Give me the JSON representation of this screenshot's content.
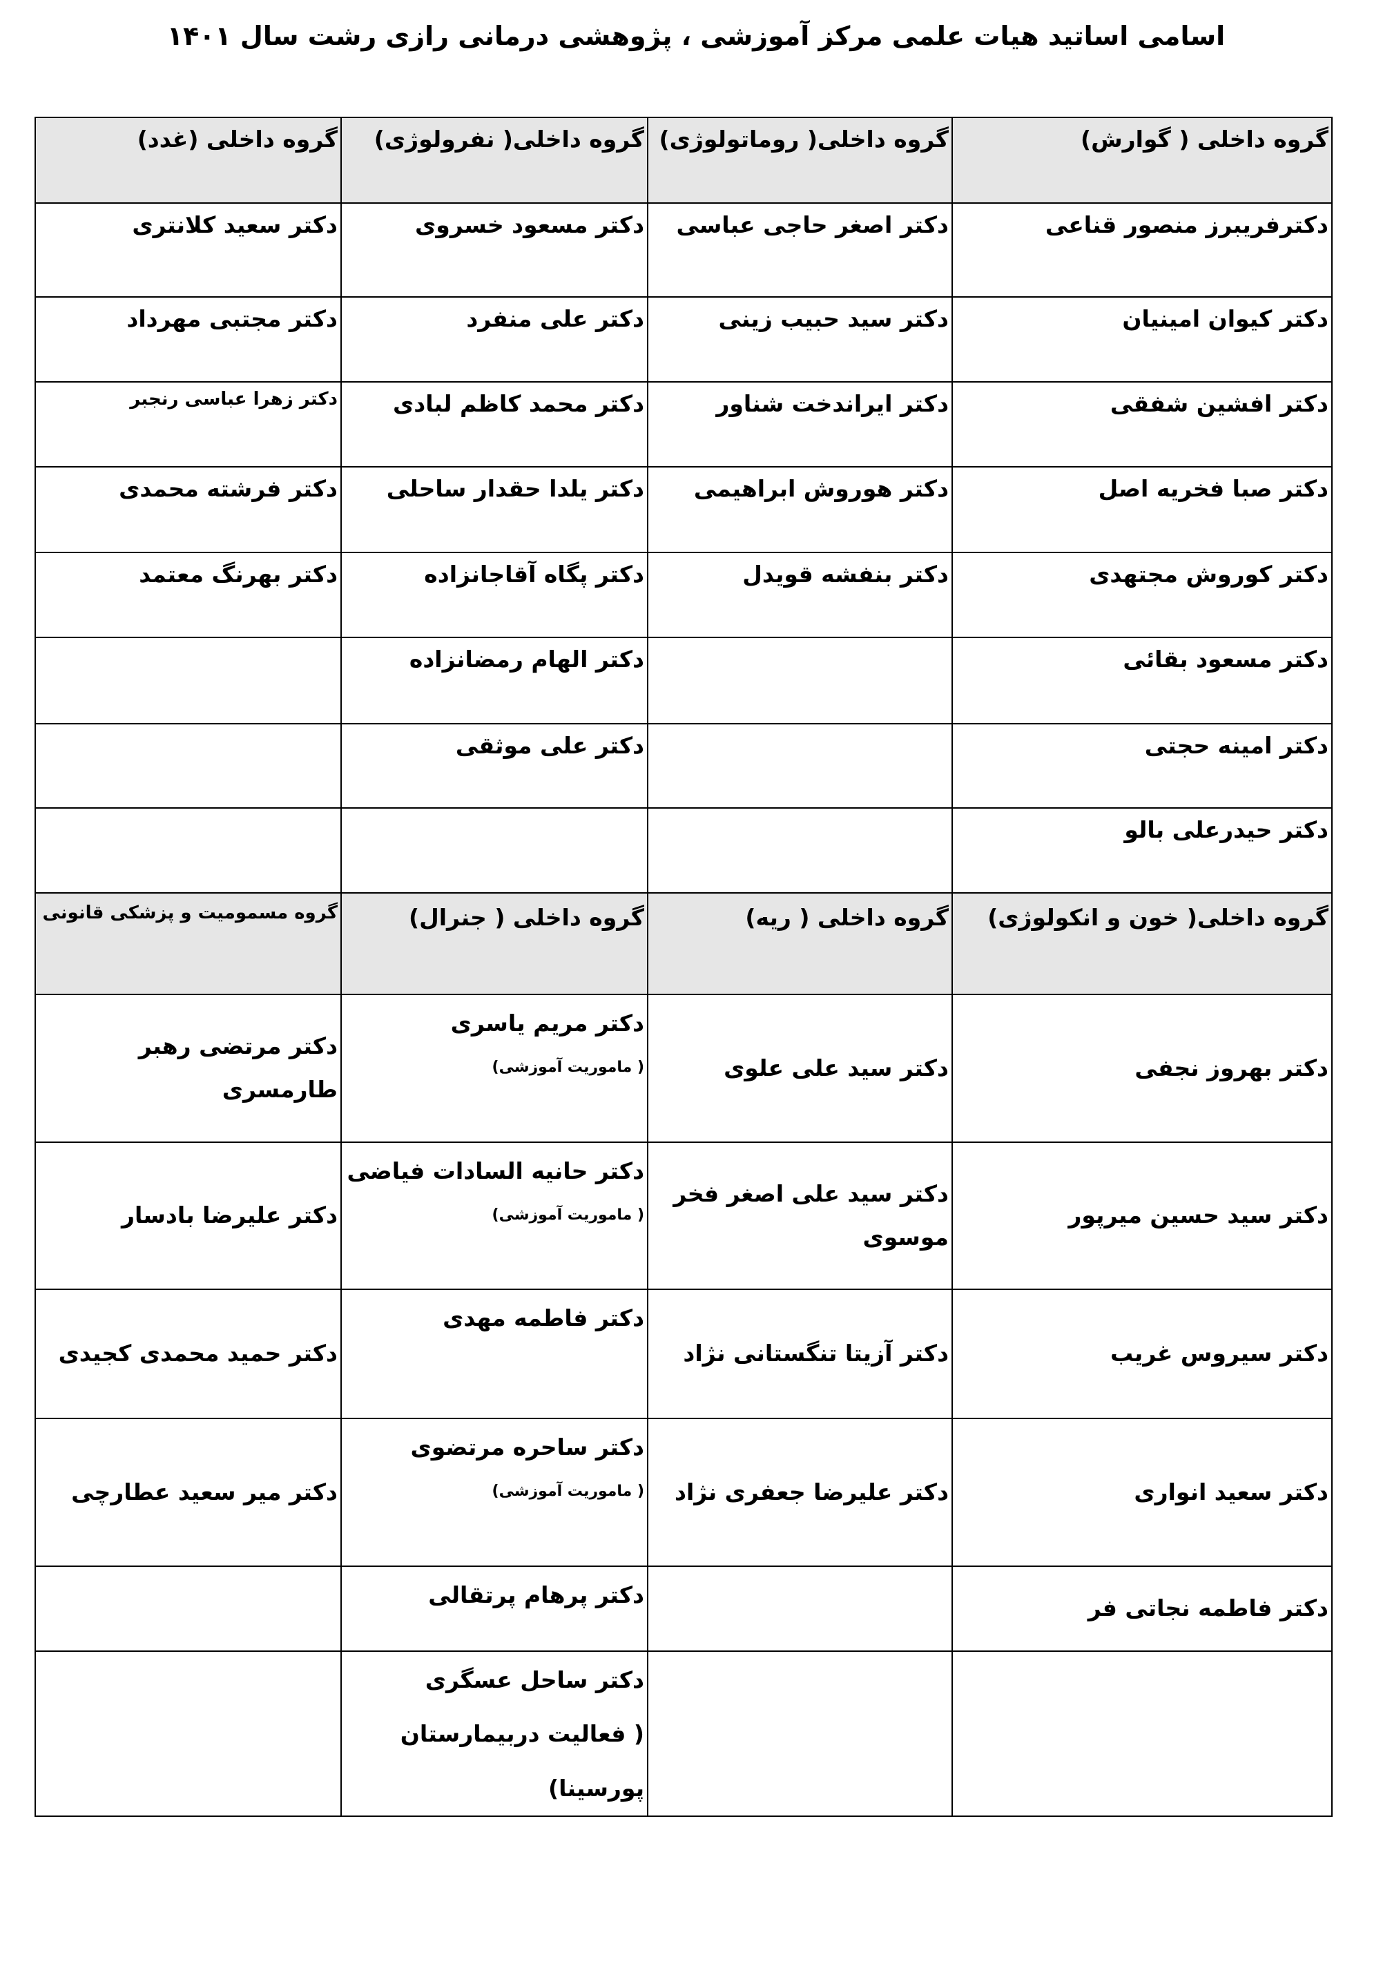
{
  "title": "اسامی اساتید هیات علمی مرکز آموزشی ، پژوهشی درمانی رازی رشت سال ۱۴۰۱",
  "sections": [
    {
      "headers": [
        "گروه داخلی ( گوارش)",
        "گروه داخلی( روماتولوژی)",
        "گروه داخلی( نفرولوژی)",
        "گروه داخلی (غدد)"
      ],
      "rows": [
        [
          {
            "name": "دکترفریبرز منصور قناعی"
          },
          {
            "name": "دکتر اصغر حاجی عباسی"
          },
          {
            "name": "دکتر مسعود خسروی"
          },
          {
            "name": "دکتر سعید کلانتری"
          }
        ],
        [
          {
            "name": "دکتر کیوان امینیان"
          },
          {
            "name": "دکتر سید حبیب زینی"
          },
          {
            "name": "دکتر علی منفرد"
          },
          {
            "name": "دکتر مجتبی مهرداد"
          }
        ],
        [
          {
            "name": "دکتر افشین شفقی"
          },
          {
            "name": "دکتر ایراندخت شناور"
          },
          {
            "name": "دکتر محمد کاظم لبادی"
          },
          {
            "name": "دکتر  زهرا عباسی رنجبر",
            "small": true
          }
        ],
        [
          {
            "name": "دکتر صبا فخریه اصل"
          },
          {
            "name": "دکتر هوروش ابراهیمی"
          },
          {
            "name": "دکتر یلدا حقدار ساحلی"
          },
          {
            "name": "دکتر فرشته محمدی"
          }
        ],
        [
          {
            "name": "دکتر کوروش مجتهدی"
          },
          {
            "name": "دکتر بنفشه قویدل"
          },
          {
            "name": "دکتر پگاه آقاجانزاده"
          },
          {
            "name": "دکتر بهرنگ معتمد"
          }
        ],
        [
          {
            "name": "دکتر مسعود بقائی"
          },
          {
            "name": ""
          },
          {
            "name": "دکتر الهام رمضانزاده"
          },
          {
            "name": ""
          }
        ],
        [
          {
            "name": "دکتر امینه حجتی"
          },
          {
            "name": ""
          },
          {
            "name": "دکتر علی موثقی"
          },
          {
            "name": ""
          }
        ],
        [
          {
            "name": "دکتر حیدرعلی بالو"
          },
          {
            "name": ""
          },
          {
            "name": ""
          },
          {
            "name": ""
          }
        ]
      ]
    },
    {
      "headers": [
        "گروه داخلی( خون و انکولوژی)",
        "گروه داخلی ( ریه)",
        "گروه داخلی ( جنرال)",
        "گروه مسمومیت و پزشکی قانونی"
      ],
      "rows": [
        [
          {
            "name": "دکتر بهروز نجفی"
          },
          {
            "name": "دکتر سید علی علوی"
          },
          {
            "name": "دکتر مریم یاسری",
            "note": "( ماموریت آموزشی)"
          },
          {
            "name": "دکتر مرتضی رهبر طارمسری"
          }
        ],
        [
          {
            "name": "دکتر سید حسین میرپور"
          },
          {
            "name": "دکتر سید علی اصغر فخر موسوی"
          },
          {
            "name": "دکتر حانیه السادات فیاضی",
            "note": "( ماموریت آموزشی)"
          },
          {
            "name": "دکتر علیرضا بادسار"
          }
        ],
        [
          {
            "name": "دکتر سیروس غریب"
          },
          {
            "name": "دکتر آزیتا تنگستانی نژاد"
          },
          {
            "name": "دکتر فاطمه مهدی"
          },
          {
            "name": "دکتر حمید محمدی کجیدی"
          }
        ],
        [
          {
            "name": "دکتر سعید انواری"
          },
          {
            "name": "دکتر علیرضا جعفری نژاد"
          },
          {
            "name": "دکتر ساحره مرتضوی",
            "note": "( ماموریت آموزشی)"
          },
          {
            "name": "دکتر میر سعید عطارچی"
          }
        ],
        [
          {
            "name": "دکتر فاطمه نجاتی فر"
          },
          {
            "name": ""
          },
          {
            "name": "دکتر پرهام پرتقالی"
          },
          {
            "name": ""
          }
        ],
        [
          {
            "name": ""
          },
          {
            "name": ""
          },
          {
            "name": "دکتر ساحل عسگری",
            "note": "( فعالیت دربیمارستان پورسینا)",
            "note_large": true
          },
          {
            "name": ""
          }
        ]
      ]
    }
  ]
}
